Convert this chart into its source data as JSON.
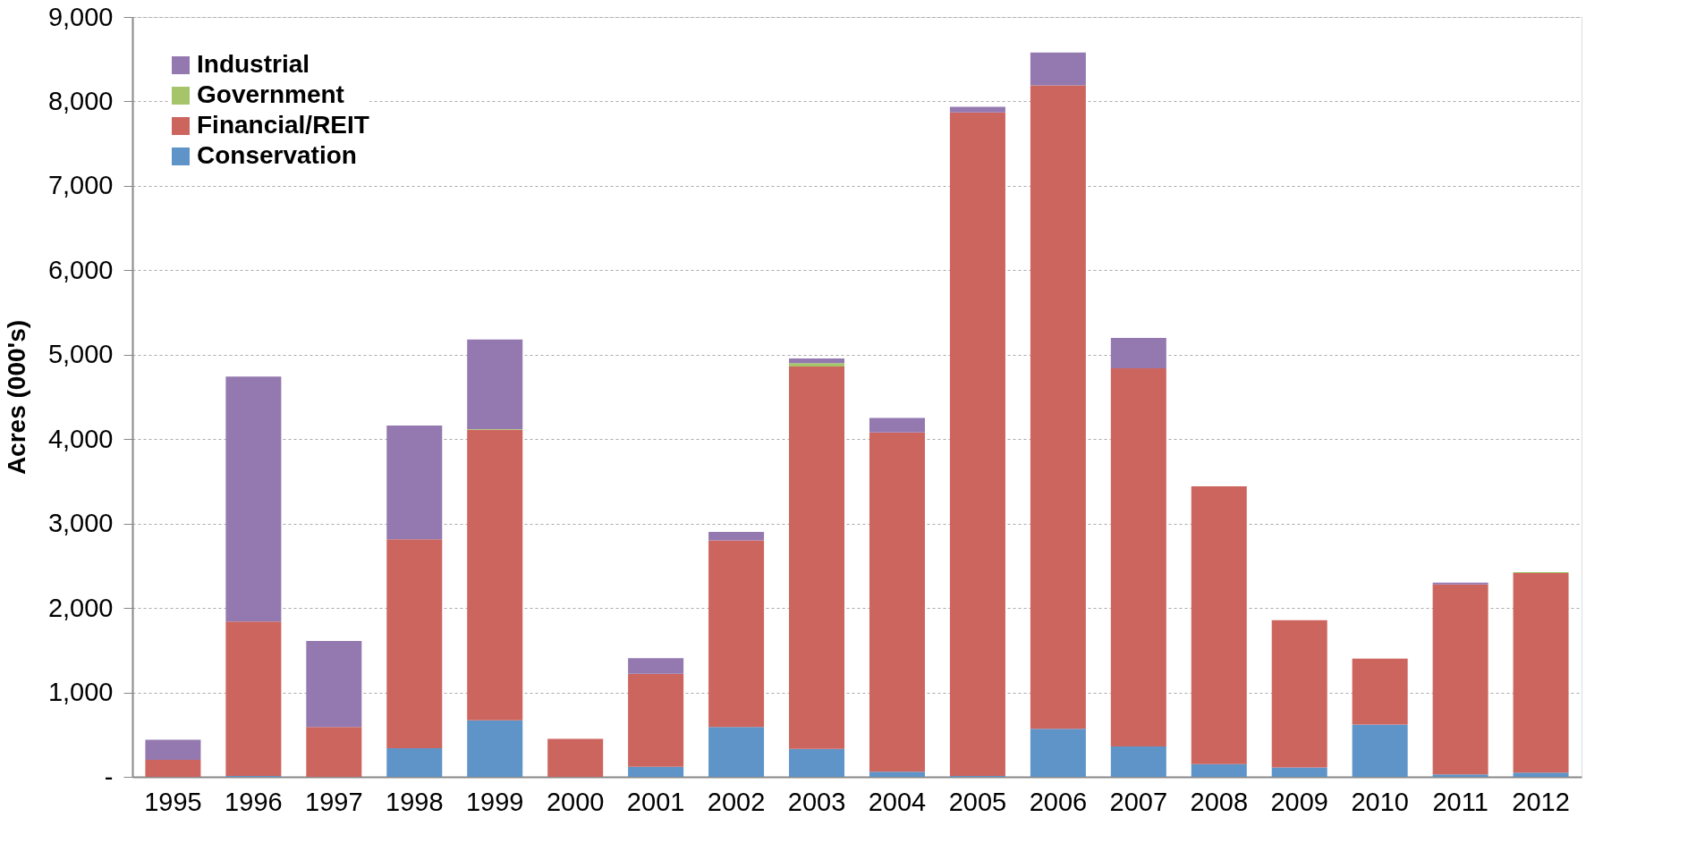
{
  "chart_data": {
    "type": "bar",
    "stacked": true,
    "ylabel": "Acres (000's)",
    "categories": [
      "1995",
      "1996",
      "1997",
      "1998",
      "1999",
      "2000",
      "2001",
      "2002",
      "2003",
      "2004",
      "2005",
      "2006",
      "2007",
      "2008",
      "2009",
      "2010",
      "2011",
      "2012"
    ],
    "series": [
      {
        "name": "Conservation",
        "color": "#5f94c8",
        "values": [
          0,
          10,
          0,
          340,
          670,
          0,
          120,
          590,
          330,
          60,
          10,
          570,
          360,
          150,
          110,
          620,
          30,
          50
        ]
      },
      {
        "name": "Financial/REIT",
        "color": "#cd655f",
        "values": [
          200,
          1830,
          590,
          2475,
          3440,
          450,
          1100,
          2210,
          4530,
          4020,
          7860,
          7620,
          4480,
          3290,
          1745,
          780,
          2250,
          2365
        ]
      },
      {
        "name": "Government",
        "color": "#a6c46a",
        "values": [
          0,
          0,
          0,
          0,
          10,
          0,
          0,
          0,
          40,
          0,
          0,
          0,
          0,
          0,
          0,
          0,
          0,
          10
        ]
      },
      {
        "name": "Industrial",
        "color": "#9479b0",
        "values": [
          240,
          2900,
          1020,
          1345,
          1060,
          0,
          185,
          100,
          55,
          170,
          65,
          390,
          360,
          0,
          0,
          0,
          20,
          0
        ]
      }
    ],
    "ylim": [
      0,
      9000
    ],
    "yticks": [
      {
        "value": 0,
        "label": "-"
      },
      {
        "value": 1000,
        "label": "1,000"
      },
      {
        "value": 2000,
        "label": "2,000"
      },
      {
        "value": 3000,
        "label": "3,000"
      },
      {
        "value": 4000,
        "label": "4,000"
      },
      {
        "value": 5000,
        "label": "5,000"
      },
      {
        "value": 6000,
        "label": "6,000"
      },
      {
        "value": 7000,
        "label": "7,000"
      },
      {
        "value": 8000,
        "label": "8,000"
      },
      {
        "value": 9000,
        "label": "9,000"
      }
    ],
    "grid": "y",
    "legend": "top left"
  }
}
